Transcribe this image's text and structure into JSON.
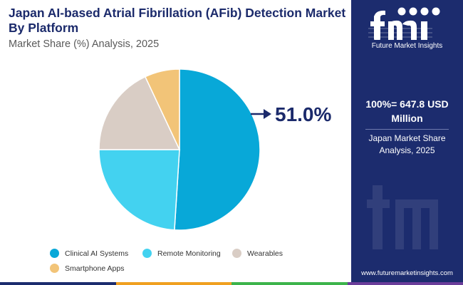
{
  "header": {
    "title": "Japan AI-based Atrial Fibrillation (AFib) Detection Market By Platform",
    "subtitle": "Market Share (%) Analysis, 2025"
  },
  "chart_data": {
    "type": "pie",
    "categories": [
      "Clinical AI Systems",
      "Remote Monitoring",
      "Wearables",
      "Smartphone Apps"
    ],
    "values": [
      51.0,
      24.0,
      18.0,
      7.0
    ],
    "colors": [
      "#08a8d8",
      "#43d2f0",
      "#d9cdc5",
      "#f2c478"
    ],
    "callout": "51.0%",
    "legend_position": "bottom"
  },
  "sidebar": {
    "brand": "Future Market Insights",
    "total": "100%= 647.8 USD Million",
    "share_label": "Japan Market Share Analysis, 2025",
    "website": "www.futuremarketinsights.com",
    "colors": {
      "background": "#1c2c6e",
      "accent": "#ffffff"
    }
  },
  "footer": {
    "bar_colors": [
      "#1c2c6e",
      "#f0a020",
      "#3cb44b",
      "#6a3d9a"
    ]
  }
}
